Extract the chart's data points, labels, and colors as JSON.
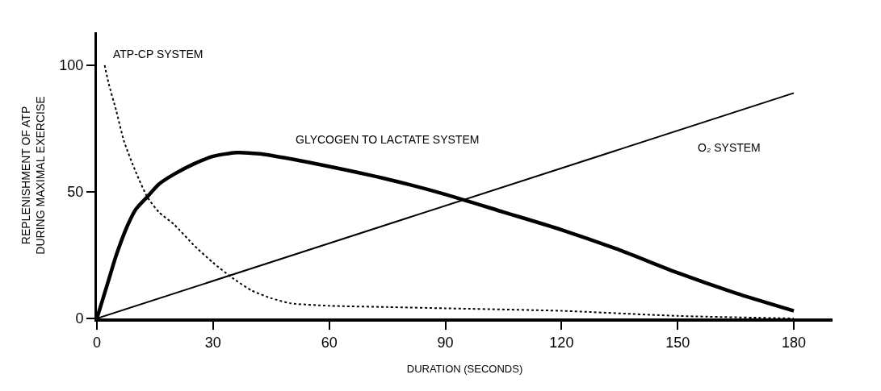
{
  "chart_data": {
    "type": "line",
    "xlabel": "DURATION (SECONDS)",
    "ylabel": "REPLENISHMENT OF ATP\nDURING MAXIMAL EXERCISE",
    "xlim": [
      0,
      190
    ],
    "ylim": [
      0,
      113
    ],
    "xticks": [
      0,
      30,
      60,
      90,
      120,
      150,
      180
    ],
    "yticks": [
      0,
      50,
      100
    ],
    "grid": false,
    "legend": false,
    "marker": "none",
    "series": [
      {
        "name": "ATP-CP SYSTEM",
        "color": "#000000",
        "line_style": "dotted",
        "x": [
          2,
          3,
          5,
          7,
          10,
          13,
          16,
          20,
          25,
          30,
          35,
          40,
          45,
          50,
          60,
          75,
          90,
          120,
          150,
          180
        ],
        "values": [
          100,
          93,
          82,
          70,
          58,
          48,
          42,
          37,
          29,
          22,
          16,
          11,
          8,
          6,
          5,
          4.5,
          4,
          3,
          1,
          0
        ]
      },
      {
        "name": "GLYCOGEN TO LACTATE SYSTEM",
        "color": "#000000",
        "line_style": "solid",
        "x": [
          0,
          3,
          5,
          8,
          10,
          13,
          16,
          20,
          25,
          30,
          36,
          42,
          50,
          60,
          75,
          90,
          105,
          120,
          135,
          150,
          165,
          180
        ],
        "values": [
          0,
          15,
          25,
          37,
          43,
          48,
          53,
          57,
          61,
          64,
          65.5,
          65,
          63,
          60,
          55,
          49,
          42,
          35,
          27,
          18,
          10,
          3
        ]
      },
      {
        "name": "O₂ SYSTEM",
        "color": "#000000",
        "line_style": "solid",
        "x": [
          0,
          180
        ],
        "values": [
          0,
          89
        ]
      }
    ]
  }
}
